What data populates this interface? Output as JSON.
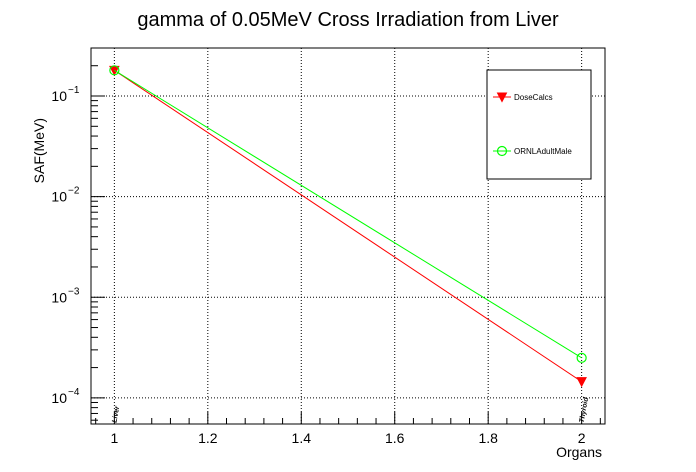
{
  "chart_data": {
    "type": "line",
    "title": "gamma of 0.05MeV Cross Irradiation from Liver",
    "xlabel": "Organs",
    "ylabel": "SAF(MeV)",
    "xlim": [
      0.95,
      2.05
    ],
    "ylim": [
      5.5e-05,
      0.3
    ],
    "yscale": "log",
    "grid": true,
    "legend_position": "top-right",
    "x_ticks": [
      {
        "value": 1,
        "label": "1"
      },
      {
        "value": 1.2,
        "label": "1.2"
      },
      {
        "value": 1.4,
        "label": "1.4"
      },
      {
        "value": 1.6,
        "label": "1.6"
      },
      {
        "value": 1.8,
        "label": "1.8"
      },
      {
        "value": 2,
        "label": "2"
      }
    ],
    "y_ticks": [
      {
        "value": 0.1,
        "base": "10",
        "exp": "−1"
      },
      {
        "value": 0.01,
        "base": "10",
        "exp": "−2"
      },
      {
        "value": 0.001,
        "base": "10",
        "exp": "−3"
      },
      {
        "value": 0.0001,
        "base": "10",
        "exp": "−4"
      }
    ],
    "categories": [
      {
        "x": 1,
        "label": "Liver"
      },
      {
        "x": 2,
        "label": "Thyroid"
      }
    ],
    "series": [
      {
        "name": "DoseCalcs",
        "color": "#ff0000",
        "marker": "triangle-down",
        "x": [
          1,
          2
        ],
        "values": [
          0.18,
          0.000145
        ]
      },
      {
        "name": "ORNLAdultMale",
        "color": "#00ff00",
        "marker": "open-circle",
        "x": [
          1,
          2
        ],
        "values": [
          0.18,
          0.00025
        ]
      }
    ]
  }
}
